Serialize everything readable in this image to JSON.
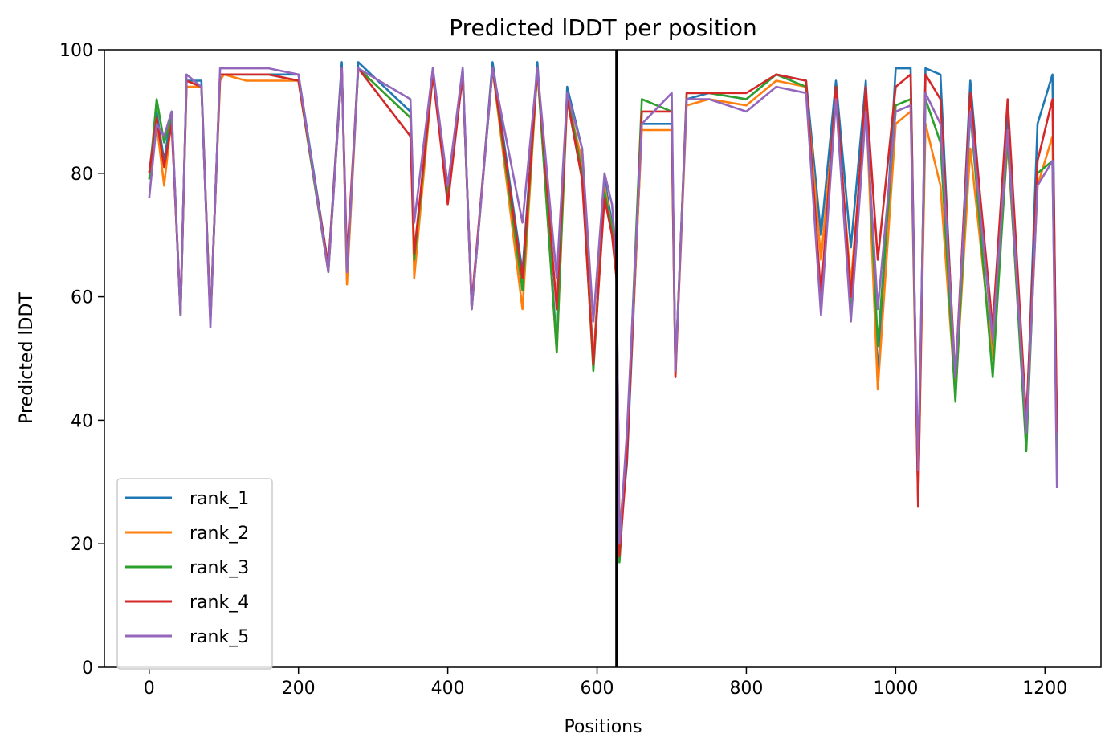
{
  "chart_data": {
    "type": "line",
    "title": "Predicted lDDT per position",
    "xlabel": "Positions",
    "ylabel": "Predicted lDDT",
    "xlim": [
      -60,
      1275
    ],
    "ylim": [
      0,
      100
    ],
    "xticks": [
      0,
      200,
      400,
      600,
      800,
      1000,
      1200
    ],
    "yticks": [
      0,
      20,
      40,
      60,
      80,
      100
    ],
    "grid": false,
    "legend_position": "lower-left",
    "vline_x": 626,
    "series": [
      {
        "name": "rank_1",
        "color": "#1f77b4",
        "points": [
          [
            0,
            80
          ],
          [
            10,
            90
          ],
          [
            20,
            82
          ],
          [
            30,
            90
          ],
          [
            42,
            57
          ],
          [
            50,
            95
          ],
          [
            70,
            95
          ],
          [
            82,
            56
          ],
          [
            95,
            96
          ],
          [
            100,
            96
          ],
          [
            130,
            96
          ],
          [
            160,
            96
          ],
          [
            200,
            96
          ],
          [
            240,
            65
          ],
          [
            258,
            98
          ],
          [
            265,
            63
          ],
          [
            280,
            98
          ],
          [
            350,
            90
          ],
          [
            355,
            65
          ],
          [
            380,
            97
          ],
          [
            400,
            77
          ],
          [
            420,
            97
          ],
          [
            432,
            58
          ],
          [
            460,
            98
          ],
          [
            500,
            64
          ],
          [
            520,
            98
          ],
          [
            546,
            52
          ],
          [
            560,
            94
          ],
          [
            580,
            84
          ],
          [
            595,
            49
          ],
          [
            610,
            79
          ],
          [
            620,
            72
          ],
          [
            626,
            65
          ],
          [
            630,
            20
          ],
          [
            640,
            33
          ],
          [
            660,
            88
          ],
          [
            700,
            88
          ],
          [
            705,
            48
          ],
          [
            720,
            92
          ],
          [
            750,
            93
          ],
          [
            800,
            92
          ],
          [
            840,
            96
          ],
          [
            880,
            95
          ],
          [
            900,
            70
          ],
          [
            920,
            95
          ],
          [
            940,
            68
          ],
          [
            960,
            95
          ],
          [
            976,
            47
          ],
          [
            1000,
            97
          ],
          [
            1020,
            97
          ],
          [
            1030,
            27
          ],
          [
            1040,
            97
          ],
          [
            1060,
            96
          ],
          [
            1080,
            45
          ],
          [
            1100,
            95
          ],
          [
            1130,
            52
          ],
          [
            1150,
            90
          ],
          [
            1175,
            38
          ],
          [
            1190,
            88
          ],
          [
            1210,
            96
          ],
          [
            1216,
            35
          ]
        ]
      },
      {
        "name": "rank_2",
        "color": "#ff7f0e",
        "points": [
          [
            0,
            80
          ],
          [
            10,
            88
          ],
          [
            20,
            78
          ],
          [
            30,
            89
          ],
          [
            42,
            57
          ],
          [
            50,
            94
          ],
          [
            70,
            94
          ],
          [
            82,
            56
          ],
          [
            95,
            95
          ],
          [
            100,
            96
          ],
          [
            130,
            95
          ],
          [
            160,
            95
          ],
          [
            200,
            95
          ],
          [
            240,
            64
          ],
          [
            258,
            97
          ],
          [
            265,
            62
          ],
          [
            280,
            97
          ],
          [
            350,
            89
          ],
          [
            355,
            63
          ],
          [
            380,
            96
          ],
          [
            400,
            76
          ],
          [
            420,
            96
          ],
          [
            432,
            58
          ],
          [
            460,
            97
          ],
          [
            500,
            58
          ],
          [
            520,
            97
          ],
          [
            546,
            51
          ],
          [
            560,
            92
          ],
          [
            580,
            82
          ],
          [
            595,
            49
          ],
          [
            610,
            78
          ],
          [
            620,
            71
          ],
          [
            626,
            63
          ],
          [
            630,
            22
          ],
          [
            640,
            35
          ],
          [
            660,
            87
          ],
          [
            700,
            87
          ],
          [
            705,
            47
          ],
          [
            720,
            91
          ],
          [
            750,
            92
          ],
          [
            800,
            91
          ],
          [
            840,
            95
          ],
          [
            880,
            94
          ],
          [
            900,
            66
          ],
          [
            920,
            92
          ],
          [
            940,
            62
          ],
          [
            960,
            92
          ],
          [
            976,
            45
          ],
          [
            1000,
            88
          ],
          [
            1020,
            90
          ],
          [
            1030,
            27
          ],
          [
            1040,
            88
          ],
          [
            1060,
            78
          ],
          [
            1080,
            44
          ],
          [
            1100,
            84
          ],
          [
            1130,
            50
          ],
          [
            1150,
            85
          ],
          [
            1175,
            37
          ],
          [
            1190,
            78
          ],
          [
            1210,
            86
          ],
          [
            1216,
            37
          ]
        ]
      },
      {
        "name": "rank_3",
        "color": "#2ca02c",
        "points": [
          [
            0,
            79
          ],
          [
            10,
            92
          ],
          [
            20,
            85
          ],
          [
            30,
            89
          ],
          [
            42,
            57
          ],
          [
            50,
            95
          ],
          [
            70,
            94
          ],
          [
            82,
            56
          ],
          [
            95,
            96
          ],
          [
            100,
            96
          ],
          [
            130,
            96
          ],
          [
            160,
            96
          ],
          [
            200,
            95
          ],
          [
            240,
            64
          ],
          [
            258,
            97
          ],
          [
            265,
            64
          ],
          [
            280,
            97
          ],
          [
            350,
            89
          ],
          [
            355,
            66
          ],
          [
            380,
            96
          ],
          [
            400,
            76
          ],
          [
            420,
            96
          ],
          [
            432,
            58
          ],
          [
            460,
            97
          ],
          [
            500,
            61
          ],
          [
            520,
            97
          ],
          [
            546,
            51
          ],
          [
            560,
            93
          ],
          [
            580,
            80
          ],
          [
            595,
            48
          ],
          [
            610,
            77
          ],
          [
            620,
            71
          ],
          [
            626,
            64
          ],
          [
            630,
            17
          ],
          [
            640,
            36
          ],
          [
            660,
            92
          ],
          [
            700,
            90
          ],
          [
            705,
            48
          ],
          [
            720,
            93
          ],
          [
            750,
            93
          ],
          [
            800,
            92
          ],
          [
            840,
            96
          ],
          [
            880,
            94
          ],
          [
            900,
            58
          ],
          [
            920,
            94
          ],
          [
            940,
            57
          ],
          [
            960,
            93
          ],
          [
            976,
            52
          ],
          [
            1000,
            91
          ],
          [
            1020,
            92
          ],
          [
            1030,
            29
          ],
          [
            1040,
            92
          ],
          [
            1060,
            85
          ],
          [
            1080,
            43
          ],
          [
            1100,
            90
          ],
          [
            1130,
            47
          ],
          [
            1150,
            86
          ],
          [
            1175,
            35
          ],
          [
            1190,
            80
          ],
          [
            1210,
            82
          ],
          [
            1216,
            33
          ]
        ]
      },
      {
        "name": "rank_4",
        "color": "#d62728",
        "points": [
          [
            0,
            80
          ],
          [
            10,
            89
          ],
          [
            20,
            81
          ],
          [
            30,
            88
          ],
          [
            42,
            58
          ],
          [
            50,
            95
          ],
          [
            70,
            94
          ],
          [
            82,
            56
          ],
          [
            95,
            96
          ],
          [
            100,
            96
          ],
          [
            130,
            96
          ],
          [
            160,
            96
          ],
          [
            200,
            95
          ],
          [
            240,
            65
          ],
          [
            258,
            97
          ],
          [
            265,
            66
          ],
          [
            280,
            97
          ],
          [
            350,
            86
          ],
          [
            355,
            67
          ],
          [
            380,
            96
          ],
          [
            400,
            75
          ],
          [
            420,
            96
          ],
          [
            432,
            59
          ],
          [
            460,
            97
          ],
          [
            500,
            63
          ],
          [
            520,
            97
          ],
          [
            546,
            58
          ],
          [
            560,
            92
          ],
          [
            580,
            79
          ],
          [
            595,
            49
          ],
          [
            610,
            76
          ],
          [
            620,
            70
          ],
          [
            626,
            63
          ],
          [
            630,
            18
          ],
          [
            640,
            34
          ],
          [
            660,
            90
          ],
          [
            700,
            90
          ],
          [
            705,
            47
          ],
          [
            720,
            93
          ],
          [
            750,
            93
          ],
          [
            800,
            93
          ],
          [
            840,
            96
          ],
          [
            880,
            95
          ],
          [
            900,
            60
          ],
          [
            920,
            94
          ],
          [
            940,
            60
          ],
          [
            960,
            94
          ],
          [
            976,
            66
          ],
          [
            1000,
            94
          ],
          [
            1020,
            96
          ],
          [
            1030,
            26
          ],
          [
            1040,
            96
          ],
          [
            1060,
            92
          ],
          [
            1080,
            47
          ],
          [
            1100,
            93
          ],
          [
            1130,
            55
          ],
          [
            1150,
            92
          ],
          [
            1175,
            40
          ],
          [
            1190,
            82
          ],
          [
            1210,
            92
          ],
          [
            1216,
            38
          ]
        ]
      },
      {
        "name": "rank_5",
        "color": "#9467bd",
        "points": [
          [
            0,
            76
          ],
          [
            10,
            88
          ],
          [
            20,
            86
          ],
          [
            30,
            90
          ],
          [
            42,
            57
          ],
          [
            50,
            96
          ],
          [
            70,
            94
          ],
          [
            82,
            55
          ],
          [
            95,
            97
          ],
          [
            100,
            97
          ],
          [
            130,
            97
          ],
          [
            160,
            97
          ],
          [
            200,
            96
          ],
          [
            240,
            64
          ],
          [
            258,
            97
          ],
          [
            265,
            64
          ],
          [
            280,
            97
          ],
          [
            350,
            92
          ],
          [
            355,
            72
          ],
          [
            380,
            97
          ],
          [
            400,
            78
          ],
          [
            420,
            97
          ],
          [
            432,
            58
          ],
          [
            460,
            97
          ],
          [
            500,
            72
          ],
          [
            520,
            97
          ],
          [
            546,
            63
          ],
          [
            560,
            93
          ],
          [
            580,
            84
          ],
          [
            595,
            56
          ],
          [
            610,
            80
          ],
          [
            620,
            75
          ],
          [
            626,
            66
          ],
          [
            630,
            20
          ],
          [
            640,
            38
          ],
          [
            660,
            88
          ],
          [
            700,
            93
          ],
          [
            705,
            48
          ],
          [
            720,
            92
          ],
          [
            750,
            92
          ],
          [
            800,
            90
          ],
          [
            840,
            94
          ],
          [
            880,
            93
          ],
          [
            900,
            57
          ],
          [
            920,
            92
          ],
          [
            940,
            56
          ],
          [
            960,
            90
          ],
          [
            976,
            58
          ],
          [
            1000,
            90
          ],
          [
            1020,
            91
          ],
          [
            1030,
            32
          ],
          [
            1040,
            93
          ],
          [
            1060,
            88
          ],
          [
            1080,
            47
          ],
          [
            1100,
            90
          ],
          [
            1130,
            53
          ],
          [
            1150,
            87
          ],
          [
            1175,
            38
          ],
          [
            1190,
            78
          ],
          [
            1210,
            82
          ],
          [
            1216,
            29
          ]
        ]
      }
    ]
  }
}
